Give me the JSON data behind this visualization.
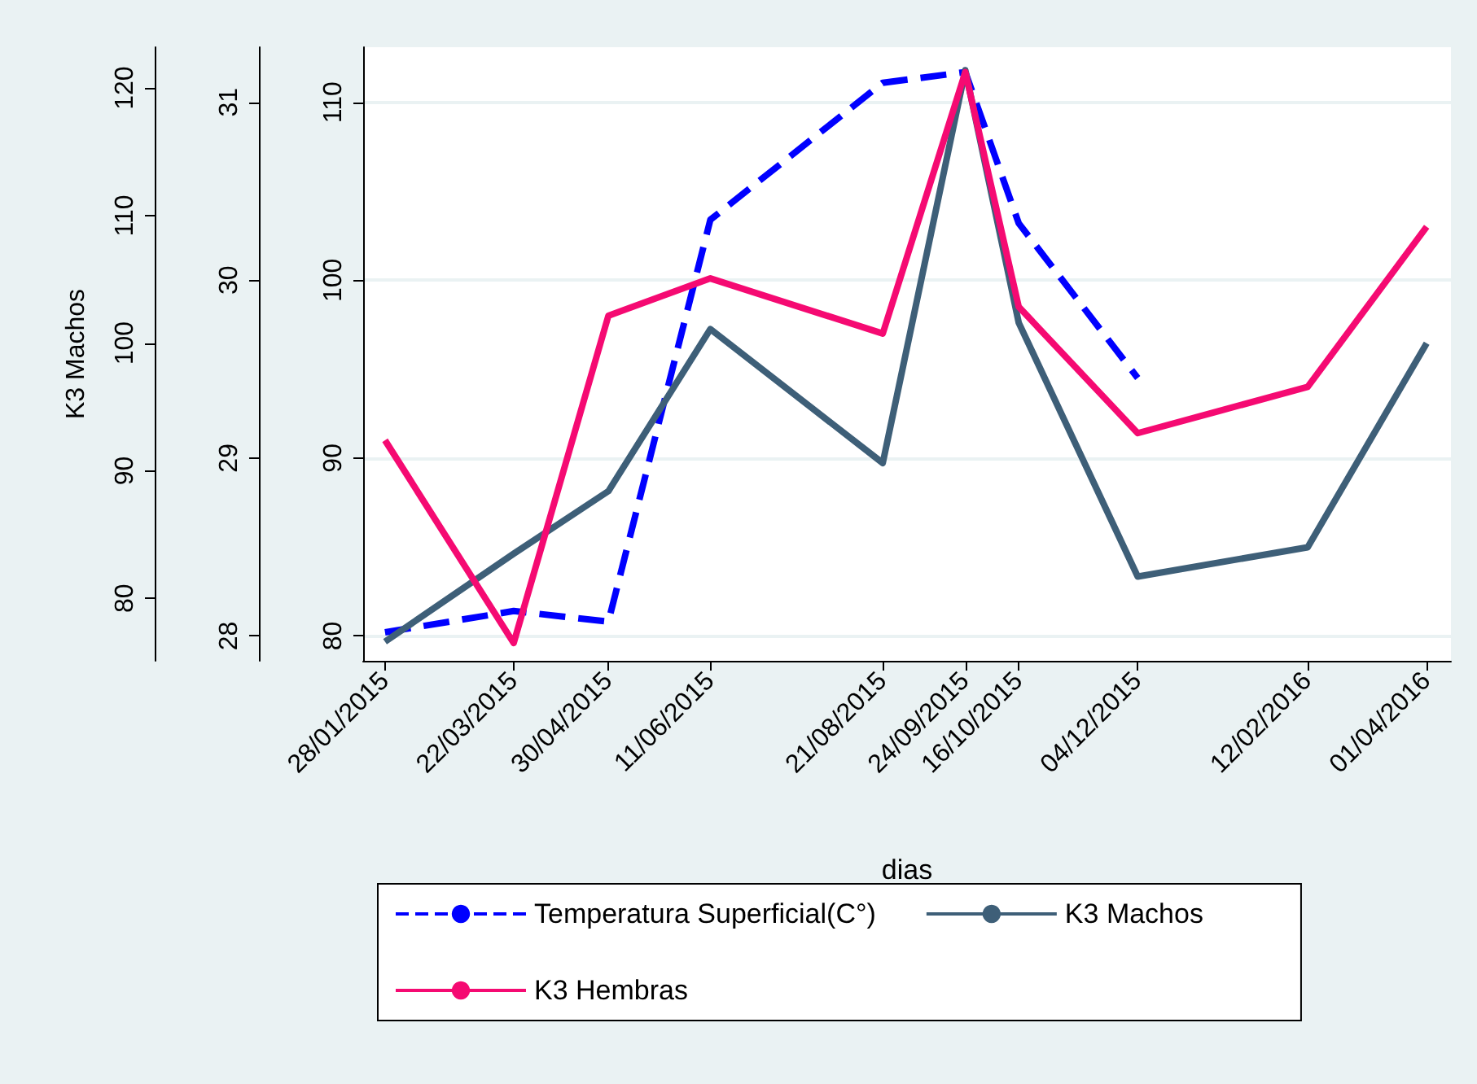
{
  "chart_data": {
    "type": "line",
    "xlabel": "dias",
    "ylabel": "K3 Machos",
    "x": [
      "2015-01-28",
      "2015-03-22",
      "2015-04-30",
      "2015-06-11",
      "2015-08-21",
      "2015-09-24",
      "2015-10-16",
      "2015-12-04",
      "2016-02-12",
      "2016-04-01"
    ],
    "xlim": [
      "2015-01-19",
      "2016-04-11"
    ],
    "xticks": [
      {
        "value": "2015-01-28",
        "label": "28/01/2015"
      },
      {
        "value": "2015-03-22",
        "label": "22/03/2015"
      },
      {
        "value": "2015-04-30",
        "label": "30/04/2015"
      },
      {
        "value": "2015-06-11",
        "label": "11/06/2015"
      },
      {
        "value": "2015-08-21",
        "label": "21/08/2015"
      },
      {
        "value": "2015-09-24",
        "label": "24/09/2015"
      },
      {
        "value": "2015-10-16",
        "label": "16/10/2015"
      },
      {
        "value": "2015-12-04",
        "label": "04/12/2015"
      },
      {
        "value": "2016-02-12",
        "label": "12/02/2016"
      },
      {
        "value": "2016-04-01",
        "label": "01/04/2016"
      }
    ],
    "ylim": [
      75.1,
      123.2
    ],
    "yticks": [
      80,
      90,
      100,
      110,
      120
    ],
    "y2lim": [
      27.86,
      31.31
    ],
    "y2ticks": [
      28,
      29,
      30,
      31
    ],
    "y3lim": [
      78.6,
      113.1
    ],
    "y3ticks": [
      80,
      90,
      100,
      110
    ],
    "series": [
      {
        "name": "Temperatura Superficial(C°)",
        "color": "#0000ff",
        "axis": "y2",
        "line_style": "dashed",
        "values": [
          28.02,
          28.14,
          28.08,
          30.34,
          31.11,
          31.17,
          30.32,
          29.45,
          null,
          null
        ]
      },
      {
        "name": "K3 Machos",
        "color": "#3e5f78",
        "axis": "y",
        "values": [
          76.6,
          83.5,
          88.4,
          101.1,
          90.6,
          121.4,
          101.6,
          81.7,
          84.0,
          100.0
        ]
      },
      {
        "name": "K3 Hembras",
        "color": "#f50a72",
        "axis": "y3",
        "values": [
          91.0,
          79.6,
          98.0,
          100.1,
          97.0,
          111.7,
          98.5,
          91.4,
          94.0,
          103.0
        ]
      }
    ],
    "grid": "y",
    "legend": "bottom",
    "marker": "none",
    "line_style": "solid"
  }
}
